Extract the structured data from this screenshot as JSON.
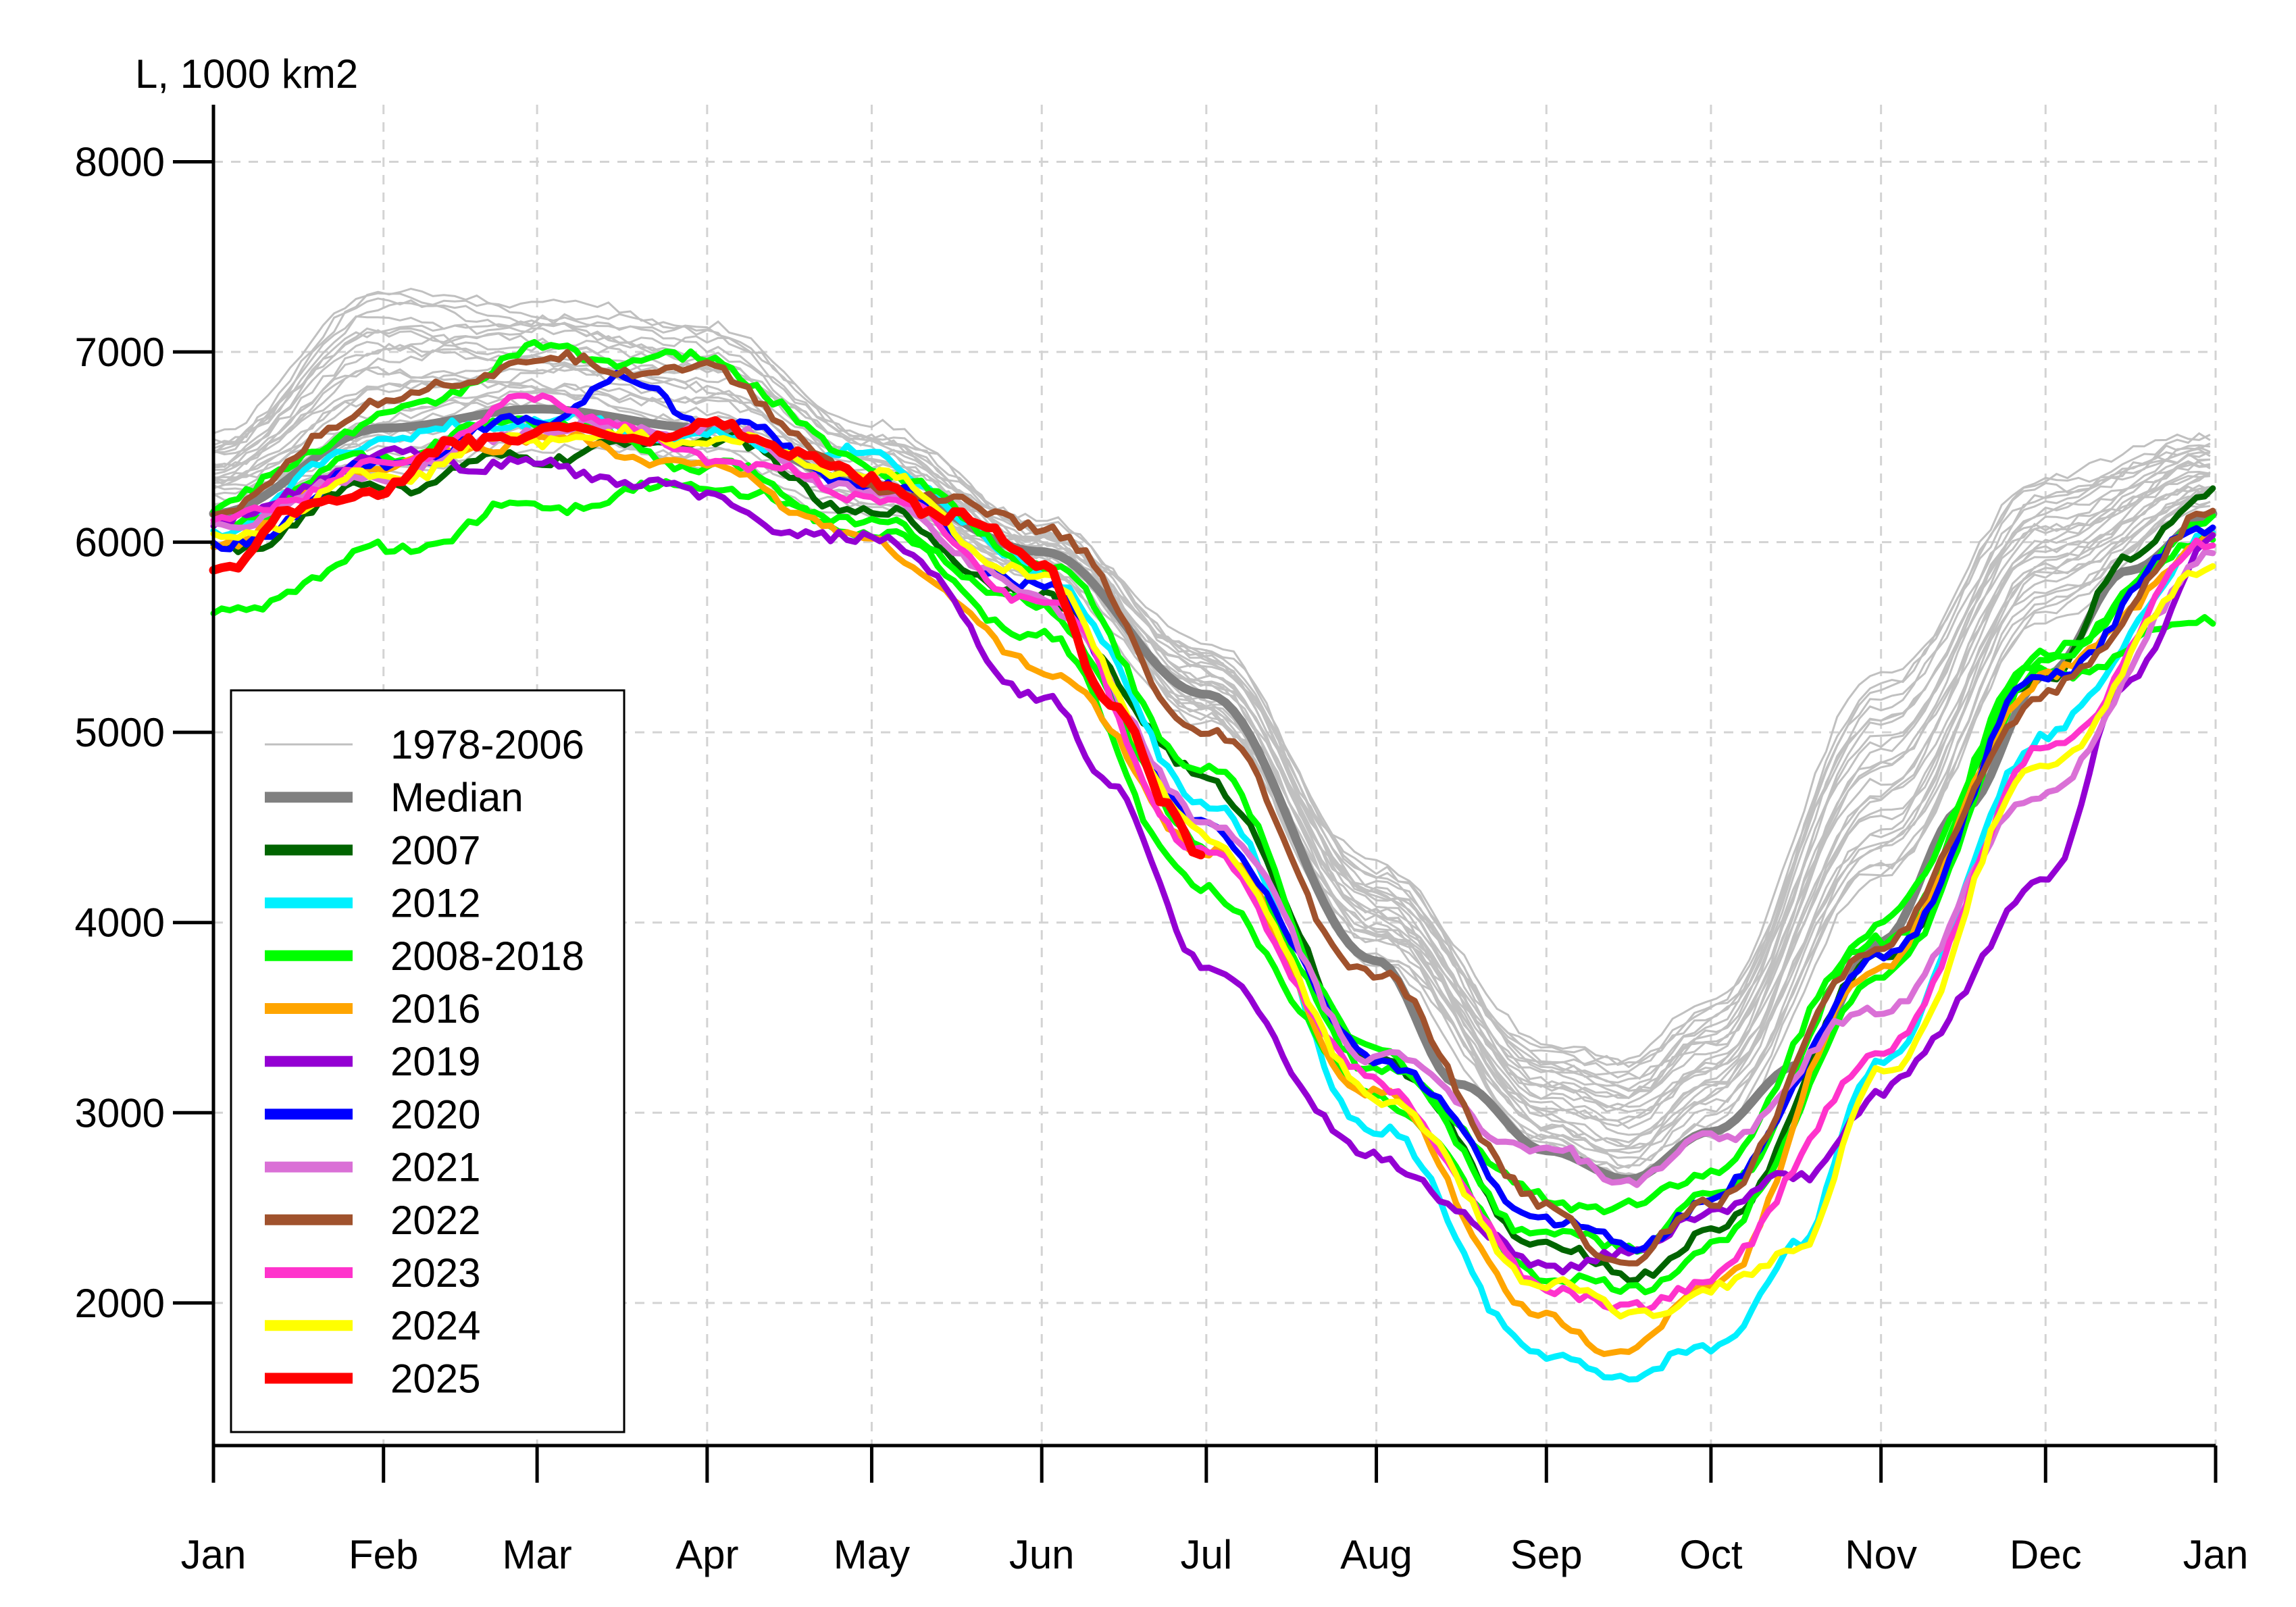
{
  "chart_data": {
    "type": "line",
    "ylabel": "L, 1000 km2",
    "xlabel": "",
    "title": "",
    "x_ticks": [
      "Jan",
      "Feb",
      "Mar",
      "Apr",
      "May",
      "Jun",
      "Jul",
      "Aug",
      "Sep",
      "Oct",
      "Nov",
      "Dec",
      "Jan"
    ],
    "y_ticks": [
      "2000",
      "3000",
      "4000",
      "5000",
      "6000",
      "7000",
      "8000"
    ],
    "xlim": [
      1,
      366
    ],
    "ylim": [
      1250,
      8300
    ],
    "grid": true,
    "legend_placement": "bottom-left",
    "background_years": {
      "label": "1978-2006",
      "color": "#c0c0c0",
      "count": 29,
      "min": {
        "x": [
          1,
          32,
          60,
          91,
          121,
          152,
          182,
          213,
          244,
          259,
          274,
          305,
          335,
          366
        ],
        "y": [
          6150,
          6350,
          6500,
          6400,
          6150,
          5850,
          5050,
          3800,
          2800,
          2650,
          2900,
          4200,
          5600,
          6200
        ]
      },
      "max": {
        "x": [
          1,
          32,
          60,
          91,
          121,
          152,
          182,
          213,
          244,
          259,
          274,
          305,
          335,
          366
        ],
        "y": [
          6550,
          7350,
          7250,
          7150,
          6600,
          6100,
          5450,
          4300,
          3350,
          3300,
          3600,
          5300,
          6350,
          6550
        ]
      }
    },
    "series": [
      {
        "name": "Median",
        "color": "#808080",
        "width": 13,
        "x": [
          1,
          32,
          60,
          91,
          121,
          152,
          182,
          213,
          228,
          244,
          259,
          274,
          290,
          305,
          320,
          335,
          350,
          366
        ],
        "y": [
          6150,
          6600,
          6700,
          6600,
          6300,
          5950,
          5200,
          3800,
          3150,
          2800,
          2650,
          2900,
          3250,
          3900,
          4600,
          5300,
          5850,
          6150
        ]
      },
      {
        "name": "2007",
        "color": "#006400",
        "width": 9,
        "x": [
          1,
          32,
          60,
          91,
          121,
          152,
          182,
          213,
          244,
          259,
          274,
          305,
          335,
          350,
          366
        ],
        "y": [
          5950,
          6300,
          6450,
          6550,
          6150,
          5700,
          4750,
          3300,
          2300,
          2150,
          2350,
          3800,
          5300,
          5900,
          6300
        ]
      },
      {
        "name": "2012",
        "color": "#00f0ff",
        "width": 9,
        "x": [
          1,
          32,
          60,
          91,
          121,
          152,
          182,
          213,
          244,
          259,
          274,
          290,
          305,
          335,
          366
        ],
        "y": [
          6050,
          6550,
          6650,
          6550,
          6450,
          5850,
          4650,
          2900,
          1700,
          1620,
          1750,
          2300,
          3300,
          5000,
          6050
        ]
      },
      {
        "name": "2008-2018",
        "color": "#00ff00",
        "width": 9,
        "x": [
          1,
          32,
          60,
          91,
          121,
          152,
          182,
          213,
          244,
          259,
          274,
          305,
          335,
          366
        ],
        "y": [
          6200,
          6650,
          7000,
          6950,
          6400,
          5900,
          4800,
          3300,
          2550,
          2500,
          2700,
          4000,
          5400,
          6100
        ]
      },
      {
        "name": "2008-2018",
        "color": "#00ff00",
        "width": 9,
        "x": [
          1,
          32,
          60,
          91,
          121,
          152,
          182,
          213,
          244,
          259,
          274,
          305,
          335,
          366
        ],
        "y": [
          5600,
          5950,
          6200,
          6300,
          6050,
          5500,
          4150,
          3100,
          2150,
          2050,
          2300,
          3700,
          5300,
          5600
        ]
      },
      {
        "name": "2008-2018",
        "color": "#00ff00",
        "width": 9,
        "x": [
          1,
          32,
          60,
          91,
          121,
          152,
          182,
          213,
          244,
          259,
          274,
          305,
          335,
          366
        ],
        "y": [
          6100,
          6450,
          6650,
          6400,
          6100,
          5650,
          4400,
          3250,
          2350,
          2300,
          2550,
          3900,
          5400,
          6050
        ]
      },
      {
        "name": "2016",
        "color": "#ffa500",
        "width": 9,
        "x": [
          1,
          32,
          60,
          91,
          121,
          152,
          182,
          213,
          244,
          259,
          274,
          305,
          335,
          366
        ],
        "y": [
          6000,
          6400,
          6550,
          6400,
          6000,
          5350,
          4400,
          3100,
          1900,
          1750,
          2100,
          3800,
          5300,
          6000
        ]
      },
      {
        "name": "2019",
        "color": "#9400d3",
        "width": 9,
        "x": [
          1,
          32,
          60,
          91,
          110,
          121,
          152,
          165,
          182,
          213,
          244,
          259,
          274,
          290,
          305,
          335,
          350,
          366
        ],
        "y": [
          6100,
          6450,
          6400,
          6250,
          6000,
          6050,
          5200,
          4700,
          3750,
          2750,
          2200,
          2250,
          2500,
          2650,
          3100,
          4200,
          5300,
          6000
        ]
      },
      {
        "name": "2020",
        "color": "#0000ff",
        "width": 9,
        "x": [
          1,
          32,
          60,
          75,
          91,
          121,
          152,
          182,
          213,
          244,
          259,
          274,
          305,
          335,
          366
        ],
        "y": [
          5950,
          6400,
          6650,
          6850,
          6650,
          6300,
          5750,
          4500,
          3300,
          2450,
          2300,
          2550,
          3800,
          5300,
          6100
        ]
      },
      {
        "name": "2021",
        "color": "#da70d6",
        "width": 9,
        "x": [
          1,
          32,
          60,
          91,
          121,
          152,
          182,
          213,
          244,
          259,
          274,
          305,
          335,
          366
        ],
        "y": [
          6100,
          6350,
          6600,
          6600,
          6250,
          5700,
          4550,
          3300,
          2800,
          2650,
          2850,
          3550,
          4700,
          5950
        ]
      },
      {
        "name": "2022",
        "color": "#a0522d",
        "width": 9,
        "x": [
          1,
          32,
          60,
          91,
          121,
          152,
          182,
          213,
          244,
          259,
          274,
          305,
          335,
          366
        ],
        "y": [
          6150,
          6750,
          6950,
          6900,
          6300,
          6100,
          5000,
          3700,
          2500,
          2200,
          2550,
          3900,
          5200,
          6150
        ]
      },
      {
        "name": "2023",
        "color": "#ff33cc",
        "width": 9,
        "x": [
          1,
          32,
          60,
          91,
          121,
          152,
          182,
          213,
          244,
          259,
          274,
          305,
          335,
          366
        ],
        "y": [
          6100,
          6400,
          6750,
          6450,
          6250,
          5700,
          4350,
          3150,
          2100,
          1950,
          2150,
          3300,
          4900,
          6000
        ]
      },
      {
        "name": "2024",
        "color": "#ffff00",
        "width": 9,
        "x": [
          1,
          32,
          60,
          91,
          121,
          152,
          182,
          213,
          244,
          259,
          274,
          290,
          305,
          335,
          366
        ],
        "y": [
          6000,
          6350,
          6550,
          6550,
          6350,
          5800,
          4450,
          3100,
          2100,
          1950,
          2050,
          2300,
          3200,
          4850,
          5900
        ]
      },
      {
        "name": "2025",
        "color": "#ff0000",
        "width": 13,
        "x": [
          1,
          15,
          32,
          45,
          60,
          75,
          91,
          106,
          121,
          135,
          152,
          165,
          175,
          182
        ],
        "y": [
          5850,
          6150,
          6300,
          6500,
          6600,
          6550,
          6600,
          6500,
          6300,
          6150,
          5900,
          5150,
          4600,
          4350
        ]
      }
    ],
    "legend": [
      {
        "label": "1978-2006",
        "color": "#c0c0c0",
        "thin": true
      },
      {
        "label": "Median",
        "color": "#808080"
      },
      {
        "label": "2007",
        "color": "#006400"
      },
      {
        "label": "2012",
        "color": "#00f0ff"
      },
      {
        "label": "2008-2018",
        "color": "#00ff00"
      },
      {
        "label": "2016",
        "color": "#ffa500"
      },
      {
        "label": "2019",
        "color": "#9400d3"
      },
      {
        "label": "2020",
        "color": "#0000ff"
      },
      {
        "label": "2021",
        "color": "#da70d6"
      },
      {
        "label": "2022",
        "color": "#a0522d"
      },
      {
        "label": "2023",
        "color": "#ff33cc"
      },
      {
        "label": "2024",
        "color": "#ffff00"
      },
      {
        "label": "2025",
        "color": "#ff0000"
      }
    ]
  }
}
